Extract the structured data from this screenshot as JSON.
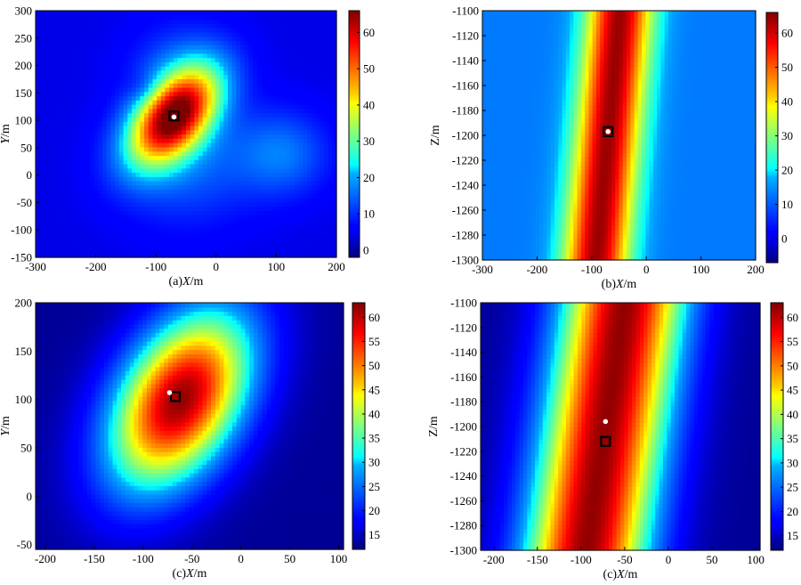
{
  "chart_data": [
    {
      "type": "heatmap",
      "panel": "a",
      "xlabel": "(a)X/m",
      "xlabel_prefix": "(a)",
      "xlabel_var": "X",
      "xlabel_unit": "/m",
      "ylabel_var": "Y",
      "ylabel_unit": "/m",
      "xlim": [
        -300,
        200
      ],
      "ylim": [
        -150,
        300
      ],
      "x_ticks": [
        -300,
        -200,
        -100,
        0,
        100,
        200
      ],
      "y_ticks": [
        -150,
        -100,
        -50,
        0,
        50,
        100,
        150,
        200,
        250,
        300
      ],
      "colorbar_range": [
        -2,
        66
      ],
      "colorbar_ticks": [
        0,
        10,
        20,
        30,
        40,
        50,
        60
      ],
      "colormap": "jet",
      "peak": {
        "x": -70,
        "y": 108,
        "value": 64
      },
      "markers": [
        {
          "kind": "square",
          "x": -70,
          "y": 108
        },
        {
          "kind": "dot",
          "x": -70,
          "y": 106
        }
      ]
    },
    {
      "type": "heatmap",
      "panel": "b",
      "xlabel": "(b)X/m",
      "xlabel_prefix": "(b)",
      "xlabel_var": "X",
      "xlabel_unit": "/m",
      "ylabel_var": "Z",
      "ylabel_unit": "/m",
      "xlim": [
        -300,
        200
      ],
      "ylim": [
        -1300,
        -1100
      ],
      "x_ticks": [
        -300,
        -200,
        -100,
        0,
        100,
        200
      ],
      "y_ticks": [
        -1300,
        -1280,
        -1260,
        -1240,
        -1220,
        -1200,
        -1180,
        -1160,
        -1140,
        -1120,
        -1100
      ],
      "colorbar_range": [
        -7,
        66
      ],
      "colorbar_ticks": [
        0,
        10,
        20,
        30,
        40,
        50,
        60
      ],
      "colormap": "jet",
      "peak": {
        "x": -70,
        "y": -1197,
        "value": 64
      },
      "markers": [
        {
          "kind": "square",
          "x": -70,
          "y": -1197
        },
        {
          "kind": "dot",
          "x": -70,
          "y": -1197
        }
      ]
    },
    {
      "type": "heatmap",
      "panel": "c",
      "xlabel": "(c)X/m",
      "xlabel_prefix": "(c)",
      "xlabel_var": "X",
      "xlabel_unit": "/m",
      "ylabel_var": "Y",
      "ylabel_unit": "/m",
      "xlim": [
        -210,
        105
      ],
      "ylim": [
        -55,
        200
      ],
      "x_ticks": [
        -200,
        -150,
        -100,
        -50,
        0,
        50,
        100
      ],
      "y_ticks": [
        0,
        50,
        100,
        150,
        200
      ],
      "extra_y_tick_labels": [
        "-50"
      ],
      "colorbar_range": [
        12,
        63
      ],
      "colorbar_ticks": [
        15,
        20,
        25,
        30,
        35,
        40,
        45,
        50,
        55,
        60
      ],
      "colormap": "jet",
      "peak": {
        "x": -62,
        "y": 100,
        "value": 62
      },
      "markers": [
        {
          "kind": "square",
          "x": -67,
          "y": 103
        },
        {
          "kind": "dot",
          "x": -73,
          "y": 107
        }
      ]
    },
    {
      "type": "heatmap",
      "panel": "d",
      "xlabel": "(c)X/m",
      "xlabel_prefix": "(c)",
      "xlabel_var": "X",
      "xlabel_unit": "/m",
      "ylabel_var": "Z",
      "ylabel_unit": "/m",
      "xlim": [
        -215,
        105
      ],
      "ylim": [
        -1300,
        -1100
      ],
      "x_ticks": [
        -200,
        -150,
        -100,
        -50,
        0,
        50,
        100
      ],
      "y_ticks": [
        -1300,
        -1280,
        -1260,
        -1240,
        -1220,
        -1200,
        -1180,
        -1160,
        -1140,
        -1120,
        -1100
      ],
      "colorbar_range": [
        12,
        63
      ],
      "colorbar_ticks": [
        15,
        20,
        25,
        30,
        35,
        40,
        45,
        50,
        55,
        60
      ],
      "colormap": "jet",
      "peak": {
        "x": -72,
        "y": -1200,
        "value": 62
      },
      "markers": [
        {
          "kind": "square",
          "x": -72,
          "y": -1212
        },
        {
          "kind": "dot",
          "x": -72,
          "y": -1196
        }
      ]
    }
  ]
}
